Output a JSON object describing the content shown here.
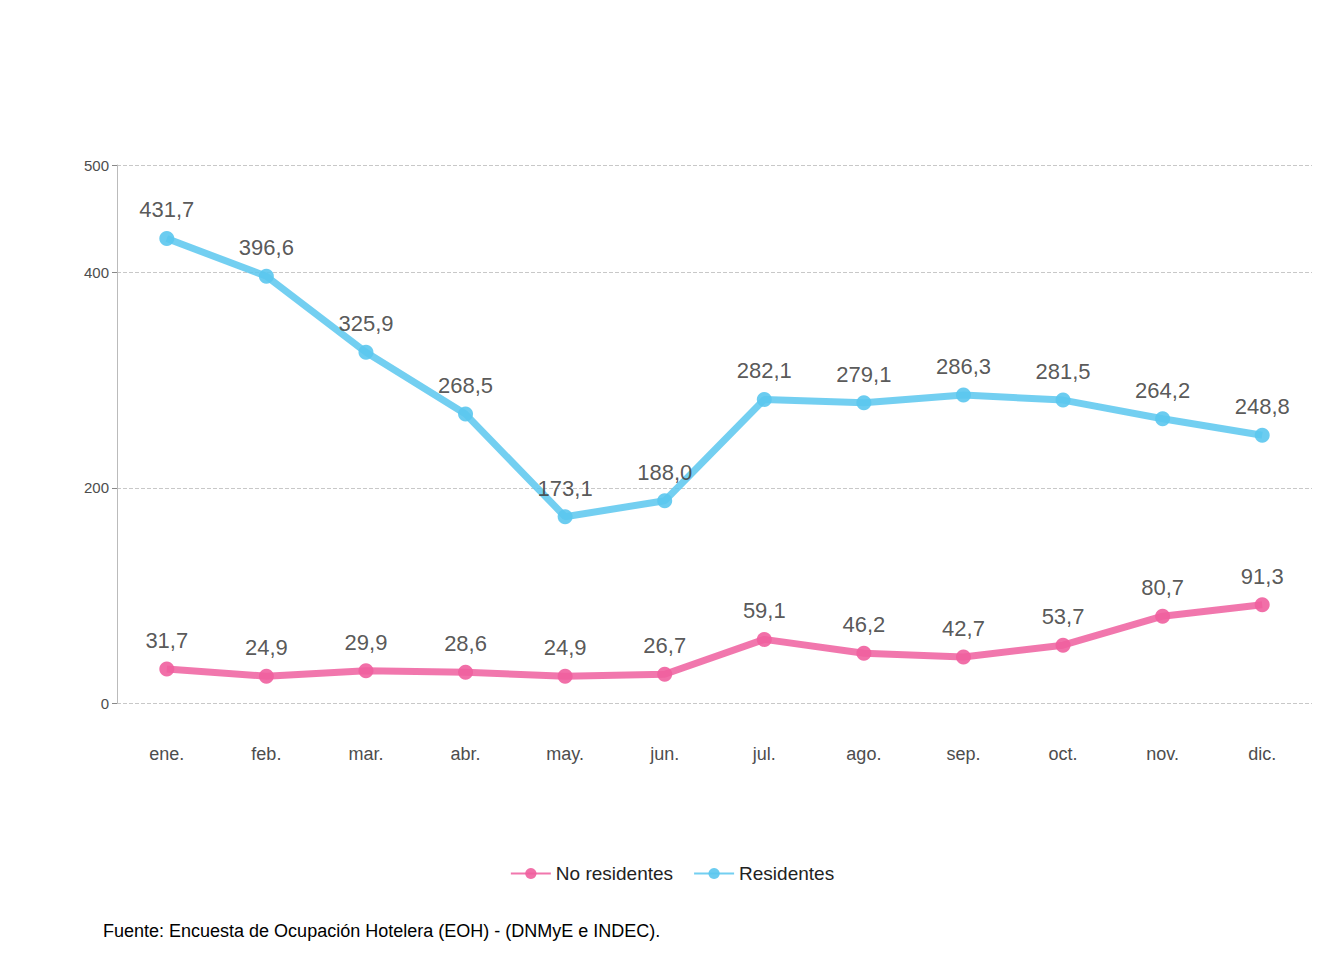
{
  "chart_data": {
    "type": "line",
    "categories": [
      "ene.",
      "feb.",
      "mar.",
      "abr.",
      "may.",
      "jun.",
      "jul.",
      "ago.",
      "sep.",
      "oct.",
      "nov.",
      "dic."
    ],
    "series": [
      {
        "name": "No residentes",
        "color": "#ef5f9f",
        "values": [
          31.7,
          24.9,
          29.9,
          28.6,
          24.9,
          26.7,
          59.1,
          46.2,
          42.7,
          53.7,
          80.7,
          91.3
        ],
        "value_labels": [
          "31,7",
          "24,9",
          "29,9",
          "28,6",
          "24,9",
          "26,7",
          "59,1",
          "46,2",
          "42,7",
          "53,7",
          "80,7",
          "91,3"
        ]
      },
      {
        "name": "Residentes",
        "color": "#5bc7ee",
        "values": [
          431.7,
          396.6,
          325.9,
          268.5,
          173.1,
          188.0,
          282.1,
          279.1,
          286.3,
          281.5,
          264.2,
          248.8
        ],
        "value_labels": [
          "431,7",
          "396,6",
          "325,9",
          "268,5",
          "173,1",
          "188,0",
          "282,1",
          "279,1",
          "286,3",
          "281,5",
          "264,2",
          "248,8"
        ]
      }
    ],
    "ylim": [
      0,
      500
    ],
    "yticks": [
      0,
      200,
      400
    ],
    "grid": true,
    "legend": "bottom",
    "data_labels": true,
    "marker": "circle",
    "source": "Fuente: Encuesta de Ocupación Hotelera (EOH) - (DNMyE e INDEC)."
  }
}
